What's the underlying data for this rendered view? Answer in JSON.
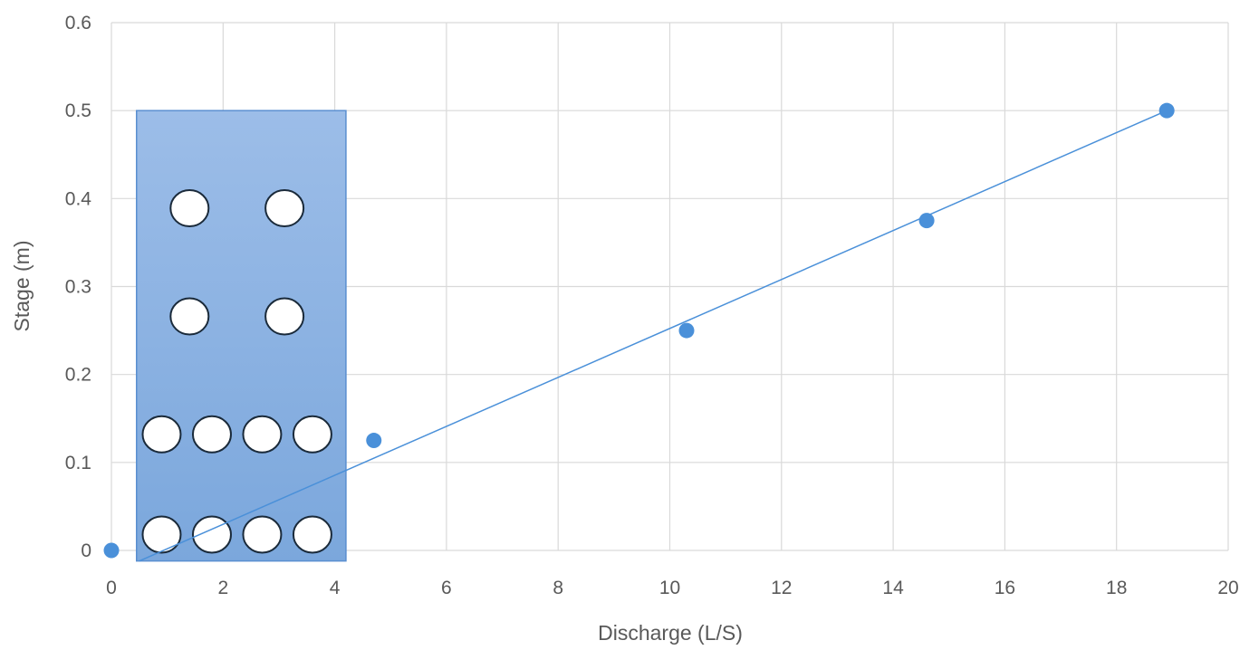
{
  "chart_data": {
    "type": "scatter",
    "title": "",
    "xlabel": "Discharge (L/S)",
    "ylabel": "Stage (m)",
    "xlim": [
      0,
      20
    ],
    "ylim": [
      0,
      0.6
    ],
    "x_ticks": [
      "0",
      "2",
      "4",
      "6",
      "8",
      "10",
      "12",
      "14",
      "16",
      "18",
      "20"
    ],
    "y_ticks": [
      "0",
      "0.1",
      "0.2",
      "0.3",
      "0.4",
      "0.5",
      "0.6"
    ],
    "grid": true,
    "legend": "none",
    "series": [
      {
        "x": [
          0,
          4.7,
          10.3,
          14.6,
          18.9
        ],
        "y": [
          0,
          0.125,
          0.25,
          0.375,
          0.5
        ],
        "color": "#4a90d9"
      }
    ],
    "trendline": {
      "type": "linear",
      "points": [
        [
          0.5,
          -0.012
        ],
        [
          18.9,
          0.5
        ]
      ],
      "color": "#4a90d9"
    },
    "overlay_panel": {
      "description_hidden": true,
      "x_range": [
        0.45,
        4.2
      ],
      "y_range": [
        -0.012,
        0.5
      ],
      "fill": "#7ba7dc",
      "stroke": "#5a8fd0",
      "holes": [
        {
          "x": 1.4,
          "y": 0.389
        },
        {
          "x": 3.1,
          "y": 0.389
        },
        {
          "x": 1.4,
          "y": 0.266
        },
        {
          "x": 3.1,
          "y": 0.266
        },
        {
          "x": 0.9,
          "y": 0.132
        },
        {
          "x": 1.8,
          "y": 0.132
        },
        {
          "x": 2.7,
          "y": 0.132
        },
        {
          "x": 3.6,
          "y": 0.132
        },
        {
          "x": 0.9,
          "y": 0.018
        },
        {
          "x": 1.8,
          "y": 0.018
        },
        {
          "x": 2.7,
          "y": 0.018
        },
        {
          "x": 3.6,
          "y": 0.018
        }
      ]
    }
  }
}
